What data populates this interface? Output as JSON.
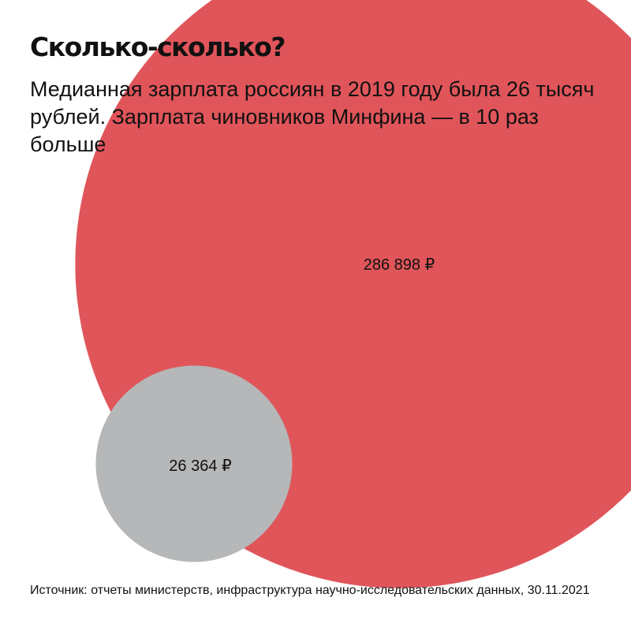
{
  "headline": "Сколько-сколько?",
  "subtitle": "Медианная зарплата россиян в 2019 году была 26 тысяч рублей. Зарплата чиновников Минфина — в 10 раз больше",
  "source": "Источник: отчеты министерств, инфраструктура научно-исследовательских данных, 30.11.2021",
  "colors": {
    "large_bubble": "#e0555a",
    "small_bubble": "#b5b7b8",
    "background": "#ffffff",
    "text": "#111111"
  },
  "chart_data": {
    "type": "bubble",
    "title": "Сколько-сколько?",
    "subtitle": "Медианная зарплата россиян в 2019 году была 26 тысяч рублей. Зарплата чиновников Минфина — в 10 раз больше",
    "area_proportional": true,
    "bubbles": [
      {
        "value": 286898,
        "label": "286 898 ₽",
        "color": "#e0555a"
      },
      {
        "value": 26364,
        "label": "26 364 ₽",
        "color": "#b5b7b8"
      }
    ]
  }
}
